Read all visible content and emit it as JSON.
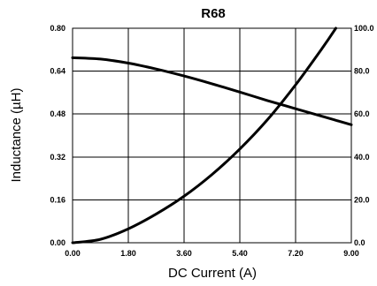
{
  "chart_data": {
    "type": "line",
    "title": "R68",
    "xlabel": "DC Current (A)",
    "ylabel": "Inductance (µH)",
    "xlim": [
      0,
      9
    ],
    "ylim": [
      0,
      0.8
    ],
    "y2lim": [
      0,
      100
    ],
    "x_ticks": [
      "0.00",
      "1.80",
      "3.60",
      "5.40",
      "7.20",
      "9.00"
    ],
    "y_ticks": [
      "0.00",
      "0.16",
      "0.32",
      "0.48",
      "0.64",
      "0.80"
    ],
    "y2_ticks": [
      "0.0",
      "20.0",
      "40.0",
      "60.0",
      "80.0",
      "100.0"
    ],
    "grid": true,
    "series": [
      {
        "axis": "left",
        "x": [
          0,
          0.9,
          1.8,
          2.7,
          3.6,
          4.5,
          5.4,
          6.3,
          7.2,
          8.1,
          9.0
        ],
        "y": [
          0.69,
          0.685,
          0.67,
          0.648,
          0.622,
          0.593,
          0.562,
          0.53,
          0.5,
          0.47,
          0.44
        ]
      },
      {
        "axis": "right",
        "x": [
          0,
          0.9,
          1.8,
          2.7,
          3.6,
          4.5,
          5.4,
          6.3,
          7.2,
          8.1,
          8.5
        ],
        "y": [
          0,
          1.6,
          6.5,
          13.4,
          21.7,
          31.8,
          43.7,
          57.5,
          73.6,
          91.5,
          100
        ]
      }
    ]
  }
}
